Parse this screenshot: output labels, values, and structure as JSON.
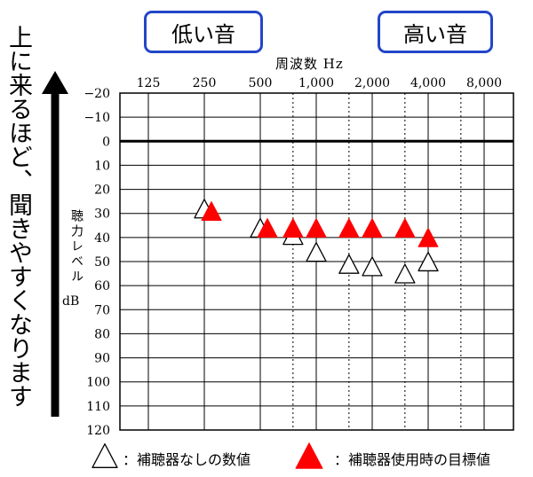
{
  "badges": {
    "low": "低い音",
    "high": "高い音"
  },
  "side_text": "上に来るほど、聞きやすくなります",
  "legend": {
    "unaided": "：補聴器なしの数値",
    "aided_target": "：補聴器使用時の目標値"
  },
  "colors": {
    "accent_blue": "#2346c8",
    "target_red": "#ff0000",
    "grid": "#000000"
  },
  "chart_data": {
    "type": "scatter",
    "title": "",
    "xlabel": "周波数 Hz",
    "ylabel": "聴力レベル",
    "yunit": "dB",
    "x_categories": [
      "125",
      "250",
      "500",
      "1,000",
      "2,000",
      "4,000",
      "8,000"
    ],
    "y_ticks": [
      "−20",
      "−10",
      "0",
      "10",
      "20",
      "30",
      "40",
      "50",
      "60",
      "70",
      "80",
      "90",
      "100",
      "110",
      "120"
    ],
    "ylim": [
      -20,
      120
    ],
    "y_inverted": true,
    "zero_line": 0,
    "grid": true,
    "series": [
      {
        "name": "補聴器なしの数値",
        "marker": "open-triangle",
        "points": [
          {
            "x": 250,
            "y": 28
          },
          {
            "x": 500,
            "y": 36
          },
          {
            "x": 750,
            "y": 39
          },
          {
            "x": 1000,
            "y": 46
          },
          {
            "x": 1500,
            "y": 51
          },
          {
            "x": 2000,
            "y": 52
          },
          {
            "x": 3000,
            "y": 55
          },
          {
            "x": 4000,
            "y": 50
          }
        ]
      },
      {
        "name": "補聴器使用時の目標値",
        "marker": "filled-triangle",
        "points": [
          {
            "x": 250,
            "y": 29
          },
          {
            "x": 500,
            "y": 36
          },
          {
            "x": 750,
            "y": 36
          },
          {
            "x": 1000,
            "y": 36
          },
          {
            "x": 1500,
            "y": 36
          },
          {
            "x": 2000,
            "y": 36
          },
          {
            "x": 3000,
            "y": 36
          },
          {
            "x": 4000,
            "y": 40
          }
        ]
      }
    ]
  }
}
